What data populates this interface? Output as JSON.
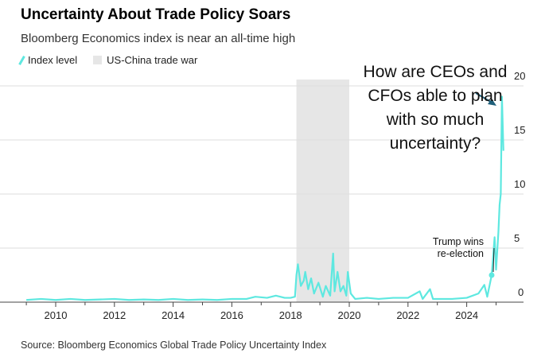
{
  "chart_data": {
    "type": "line",
    "title": "Uncertainty About Trade Policy Soars",
    "subtitle": "Bloomberg Economics index is near an all-time high",
    "legend": [
      "Index level",
      "US-China trade war"
    ],
    "source": "Source: Bloomberg Economics Global Trade Policy Uncertainty Index",
    "xlim": [
      2009,
      2025.5
    ],
    "ylim": [
      0,
      20
    ],
    "x_ticks": [
      "2010",
      "2012",
      "2014",
      "2016",
      "2018",
      "2020",
      "2022",
      "2024"
    ],
    "y_ticks": [
      "0",
      "5",
      "10",
      "15",
      "20"
    ],
    "shaded_range": [
      2018.2,
      2020.0
    ],
    "annotation": "How are CEOs and CFOs able to plan with so much uncertainty?",
    "event_label": "Trump wins re-election",
    "event_point": [
      2024.85,
      2.5
    ],
    "series": [
      {
        "name": "Index level",
        "color": "#5ee8e0",
        "points": [
          [
            2009.0,
            0.2
          ],
          [
            2009.5,
            0.3
          ],
          [
            2010,
            0.2
          ],
          [
            2010.5,
            0.3
          ],
          [
            2011,
            0.2
          ],
          [
            2011.5,
            0.25
          ],
          [
            2012,
            0.3
          ],
          [
            2012.5,
            0.2
          ],
          [
            2013,
            0.25
          ],
          [
            2013.5,
            0.2
          ],
          [
            2014,
            0.3
          ],
          [
            2014.5,
            0.2
          ],
          [
            2015,
            0.25
          ],
          [
            2015.5,
            0.2
          ],
          [
            2016,
            0.3
          ],
          [
            2016.5,
            0.3
          ],
          [
            2016.8,
            0.5
          ],
          [
            2017.2,
            0.4
          ],
          [
            2017.5,
            0.6
          ],
          [
            2017.8,
            0.4
          ],
          [
            2018.0,
            0.4
          ],
          [
            2018.15,
            0.5
          ],
          [
            2018.2,
            2.5
          ],
          [
            2018.25,
            3.5
          ],
          [
            2018.35,
            1.5
          ],
          [
            2018.45,
            2.0
          ],
          [
            2018.5,
            2.8
          ],
          [
            2018.6,
            1.2
          ],
          [
            2018.7,
            2.2
          ],
          [
            2018.8,
            0.8
          ],
          [
            2018.95,
            1.8
          ],
          [
            2019.1,
            0.5
          ],
          [
            2019.2,
            1.5
          ],
          [
            2019.35,
            0.6
          ],
          [
            2019.45,
            4.5
          ],
          [
            2019.5,
            1.0
          ],
          [
            2019.6,
            2.8
          ],
          [
            2019.7,
            1.0
          ],
          [
            2019.8,
            1.5
          ],
          [
            2019.9,
            0.6
          ],
          [
            2019.95,
            2.8
          ],
          [
            2020.05,
            0.8
          ],
          [
            2020.2,
            0.3
          ],
          [
            2020.6,
            0.4
          ],
          [
            2021,
            0.3
          ],
          [
            2021.5,
            0.4
          ],
          [
            2022,
            0.4
          ],
          [
            2022.4,
            1.0
          ],
          [
            2022.5,
            0.3
          ],
          [
            2022.75,
            1.2
          ],
          [
            2022.85,
            0.3
          ],
          [
            2023,
            0.3
          ],
          [
            2023.5,
            0.3
          ],
          [
            2024,
            0.4
          ],
          [
            2024.4,
            0.8
          ],
          [
            2024.6,
            1.6
          ],
          [
            2024.7,
            0.5
          ],
          [
            2024.85,
            2.5
          ],
          [
            2024.95,
            6.0
          ],
          [
            2025.0,
            3.0
          ],
          [
            2025.08,
            6.5
          ],
          [
            2025.12,
            9.0
          ],
          [
            2025.16,
            10.0
          ],
          [
            2025.2,
            19.0
          ],
          [
            2025.25,
            14.0
          ]
        ]
      }
    ]
  }
}
